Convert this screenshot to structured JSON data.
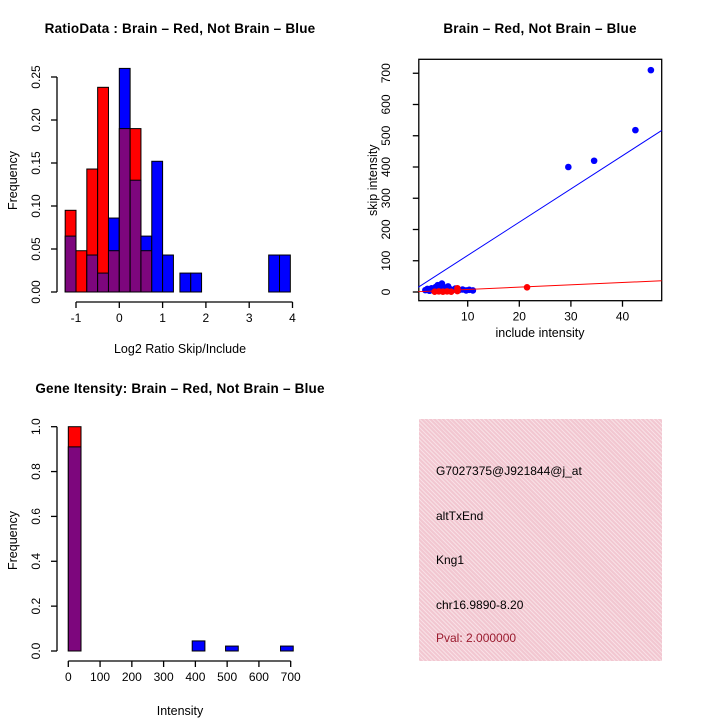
{
  "colors": {
    "red": "#FF0000",
    "blue": "#0000FF",
    "overlap": "#7D067D",
    "axis": "#000000",
    "text": "#000000",
    "background": "#FFFFFF",
    "info_box_bg": "#F2C7D1",
    "pval_text": "#9A1B2E"
  },
  "chart_data": [
    {
      "id": "ratio_histogram",
      "type": "bar",
      "title": "RatioData : Brain – Red, Not Brain – Blue",
      "xlabel": "Log2 Ratio Skip/Include",
      "ylabel": "Frequency",
      "xlim": [
        -1.45,
        4.25
      ],
      "ylim": [
        0,
        0.26
      ],
      "x_ticks": [
        -1,
        0,
        1,
        2,
        3,
        4
      ],
      "x_tick_labels": [
        "-1",
        "0",
        "1",
        "2",
        "3",
        "4"
      ],
      "y_ticks": [
        0,
        0.05,
        0.1,
        0.15,
        0.2,
        0.25
      ],
      "y_tick_labels": [
        "0.00",
        "0.05",
        "0.10",
        "0.15",
        "0.20",
        "0.25"
      ],
      "bin_width": 0.25,
      "series_legend": [
        {
          "name": "Brain",
          "color": "red"
        },
        {
          "name": "Not Brain",
          "color": "blue"
        }
      ],
      "bins": [
        {
          "x": -1.25,
          "red": 0.095,
          "blue": 0.065
        },
        {
          "x": -1.0,
          "red": 0.048,
          "blue": 0
        },
        {
          "x": -0.75,
          "red": 0.143,
          "blue": 0.043
        },
        {
          "x": -0.5,
          "red": 0.238,
          "blue": 0.022
        },
        {
          "x": -0.25,
          "red": 0.048,
          "blue": 0.086
        },
        {
          "x": 0.0,
          "red": 0.19,
          "blue": 0.26
        },
        {
          "x": 0.25,
          "red": 0.19,
          "blue": 0.13
        },
        {
          "x": 0.5,
          "red": 0.048,
          "blue": 0.065
        },
        {
          "x": 0.75,
          "red": 0,
          "blue": 0.152
        },
        {
          "x": 1.0,
          "red": 0,
          "blue": 0.043
        },
        {
          "x": 1.4,
          "red": 0,
          "blue": 0.022
        },
        {
          "x": 1.65,
          "red": 0,
          "blue": 0.022
        },
        {
          "x": 3.45,
          "red": 0,
          "blue": 0.043
        },
        {
          "x": 3.7,
          "red": 0,
          "blue": 0.043
        }
      ]
    },
    {
      "id": "intensity_scatter",
      "type": "scatter",
      "title": "Brain – Red, Not Brain – Blue",
      "xlabel": "include intensity",
      "ylabel": "skip intensity",
      "xlim": [
        0.4,
        47.6
      ],
      "ylim": [
        -28,
        745
      ],
      "x_ticks": [
        10,
        20,
        30,
        40
      ],
      "x_tick_labels": [
        "10",
        "20",
        "30",
        "40"
      ],
      "y_ticks": [
        0,
        100,
        200,
        300,
        400,
        500,
        600,
        700
      ],
      "y_tick_labels": [
        "0",
        "100",
        "200",
        "300",
        "400",
        "500",
        "600",
        "700"
      ],
      "series": [
        {
          "name": "Not Brain",
          "color": "blue",
          "points": [
            [
              1.8,
              6
            ],
            [
              2.2,
              10
            ],
            [
              2.6,
              4
            ],
            [
              3,
              12
            ],
            [
              3.4,
              8
            ],
            [
              3.8,
              16
            ],
            [
              4.2,
              22
            ],
            [
              4.6,
              12
            ],
            [
              5,
              27
            ],
            [
              5.4,
              15
            ],
            [
              5.8,
              7
            ],
            [
              6.2,
              18
            ],
            [
              6.6,
              9
            ],
            [
              7,
              5
            ],
            [
              7.6,
              11
            ],
            [
              8.3,
              6
            ],
            [
              9,
              8
            ],
            [
              9.7,
              5
            ],
            [
              10.3,
              7
            ],
            [
              11,
              5
            ],
            [
              29.5,
              400
            ],
            [
              34.5,
              420
            ],
            [
              42.5,
              518
            ],
            [
              45.5,
              710
            ]
          ]
        },
        {
          "name": "Brain",
          "color": "red",
          "points": [
            [
              3.6,
              1
            ],
            [
              4.4,
              2
            ],
            [
              5.2,
              1
            ],
            [
              6,
              2
            ],
            [
              6.8,
              1
            ],
            [
              8,
              3
            ],
            [
              8,
              12
            ],
            [
              21.5,
              15
            ]
          ]
        }
      ],
      "lines": [
        {
          "name": "not-brain-fit",
          "color": "blue",
          "x1": 0.4,
          "y1": 15,
          "x2": 47.6,
          "y2": 517
        },
        {
          "name": "brain-fit",
          "color": "red",
          "x1": 0.4,
          "y1": 1,
          "x2": 47.6,
          "y2": 36
        }
      ]
    },
    {
      "id": "gene_intensity_histogram",
      "type": "bar",
      "title": "Gene Itensity: Brain – Red, Not Brain – Blue",
      "xlabel": "Intensity",
      "ylabel": "Frequency",
      "xlim": [
        0,
        730
      ],
      "ylim": [
        0,
        1.0
      ],
      "x_ticks": [
        0,
        100,
        200,
        300,
        400,
        500,
        600,
        700
      ],
      "x_tick_labels": [
        "0",
        "100",
        "200",
        "300",
        "400",
        "500",
        "600",
        "700"
      ],
      "y_ticks": [
        0,
        0.2,
        0.4,
        0.6,
        0.8,
        1.0
      ],
      "y_tick_labels": [
        "0.0",
        "0.2",
        "0.4",
        "0.6",
        "0.8",
        "1.0"
      ],
      "bin_width": 40,
      "series_legend": [
        {
          "name": "Brain",
          "color": "red"
        },
        {
          "name": "Not Brain",
          "color": "blue"
        }
      ],
      "bins": [
        {
          "x": 0,
          "red": 1.0,
          "blue": 0.91
        },
        {
          "x": 390,
          "red": 0,
          "blue": 0.045
        },
        {
          "x": 495,
          "red": 0,
          "blue": 0.022
        },
        {
          "x": 668,
          "red": 0,
          "blue": 0.022
        }
      ]
    }
  ],
  "info_panel": {
    "probe_id": "G7027375@J921844@j_at",
    "splice_event": "altTxEnd",
    "gene_symbol": "Kng1",
    "location": "chr16.9890-8.20",
    "pval_label": "Pval: 2.000000"
  }
}
